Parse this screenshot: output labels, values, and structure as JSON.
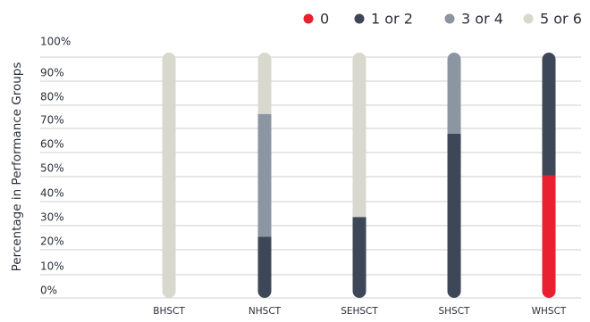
{
  "chart_data": {
    "type": "bar",
    "stacked": true,
    "ylabel": "Percentage in Performance Groups",
    "xlabel": "",
    "ylim": [
      0,
      100
    ],
    "yticks": [
      0,
      10,
      20,
      30,
      40,
      50,
      60,
      70,
      80,
      90,
      100
    ],
    "ytick_labels": [
      "0%",
      "10%",
      "20%",
      "30%",
      "40%",
      "50%",
      "60%",
      "70%",
      "80%",
      "90%",
      "100%"
    ],
    "grid": true,
    "legend_position": "top-right",
    "categories": [
      "BHSCT",
      "NHSCT",
      "SEHSCT",
      "SHSCT",
      "WHSCT"
    ],
    "series": [
      {
        "name": "0",
        "color": "#e8202f",
        "values": [
          0,
          0,
          0,
          0,
          50
        ]
      },
      {
        "name": "1 or 2",
        "color": "#3e4757",
        "values": [
          0,
          25,
          33,
          67,
          50
        ]
      },
      {
        "name": "3 or 4",
        "color": "#8c95a2",
        "values": [
          0,
          50,
          0,
          33,
          0
        ]
      },
      {
        "name": "5 or 6",
        "color": "#d8d8ce",
        "values": [
          100,
          25,
          67,
          0,
          0
        ]
      }
    ]
  }
}
